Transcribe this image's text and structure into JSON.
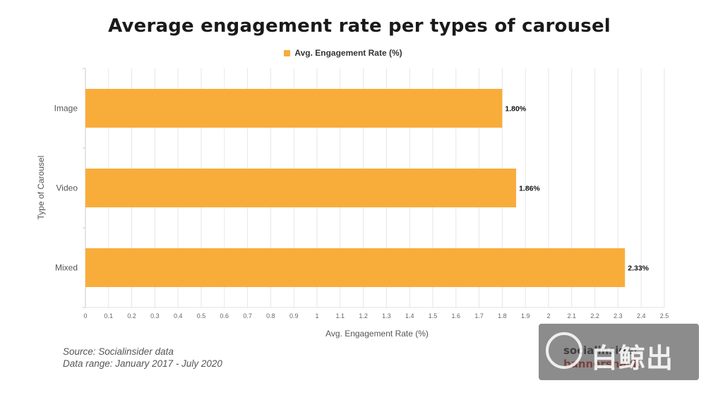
{
  "chart_data": {
    "type": "bar",
    "orientation": "horizontal",
    "title": "Average engagement rate per types of carousel",
    "categories": [
      "Image",
      "Video",
      "Mixed"
    ],
    "series": [
      {
        "name": "Avg. Engagement Rate (%)",
        "values": [
          1.8,
          1.86,
          2.33
        ],
        "labels": [
          "1.80%",
          "1.86%",
          "2.33%"
        ]
      }
    ],
    "xlabel": "Avg. Engagement Rate (%)",
    "ylabel": "Type of Carousel",
    "xlim": [
      0,
      2.5
    ],
    "xticks": [
      "0",
      "0.1",
      "0.2",
      "0.3",
      "0.4",
      "0.5",
      "0.6",
      "0.7",
      "0.8",
      "0.9",
      "1",
      "1.1",
      "1.2",
      "1.3",
      "1.4",
      "1.5",
      "1.6",
      "1.7",
      "1.8",
      "1.9",
      "2",
      "2.1",
      "2.2",
      "2.3",
      "2.4",
      "2.5"
    ],
    "grid": true,
    "legend_position": "top-center",
    "bar_color": "#F8AD3B"
  },
  "footer": {
    "source": "Source: Socialinsider data",
    "range": "Data range: January 2017 - July 2020"
  },
  "brand": {
    "socialinsider": "socialinsider",
    "bannersnack": "bannersnack"
  },
  "watermark": {
    "text": "白鲸出海"
  }
}
